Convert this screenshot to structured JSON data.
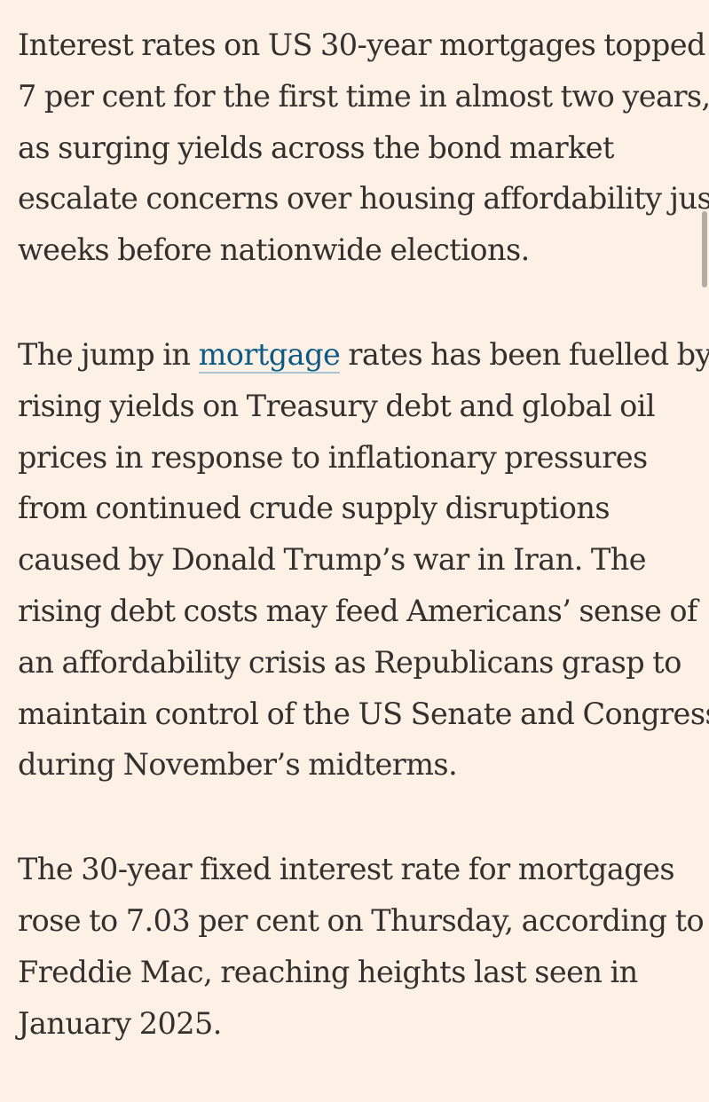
{
  "article": {
    "p1": {
      "lines": [
        "Interest rates on US 30-year mortgages topped",
        "7 per cent for the first time in almost two years,",
        "as surging yields across the bond market",
        "escalate concerns over housing affordability just",
        "weeks before nationwide elections."
      ]
    },
    "p2": {
      "line1_before_link": "The jump in ",
      "link_text": "mortgage",
      "line1_after_link": " rates has been fuelled by",
      "lines": [
        "rising yields on Treasury debt and global oil",
        "prices in response to inflationary pressures",
        "from continued crude supply disruptions",
        "caused by Donald Trump’s war in Iran. The",
        "rising debt costs may feed Americans’ sense of",
        "an affordability crisis as Republicans grasp to",
        "maintain control of the US Senate and Congress",
        "during November’s midterms."
      ]
    },
    "p3": {
      "lines": [
        "The 30-year fixed interest rate for mortgages",
        "rose to 7.03 per cent on Thursday, according to",
        "Freddie Mac, reaching heights last seen in",
        "January 2025."
      ]
    }
  },
  "colors": {
    "background": "#fdf1e6",
    "text": "#33302e",
    "link": "#0d5a86"
  }
}
